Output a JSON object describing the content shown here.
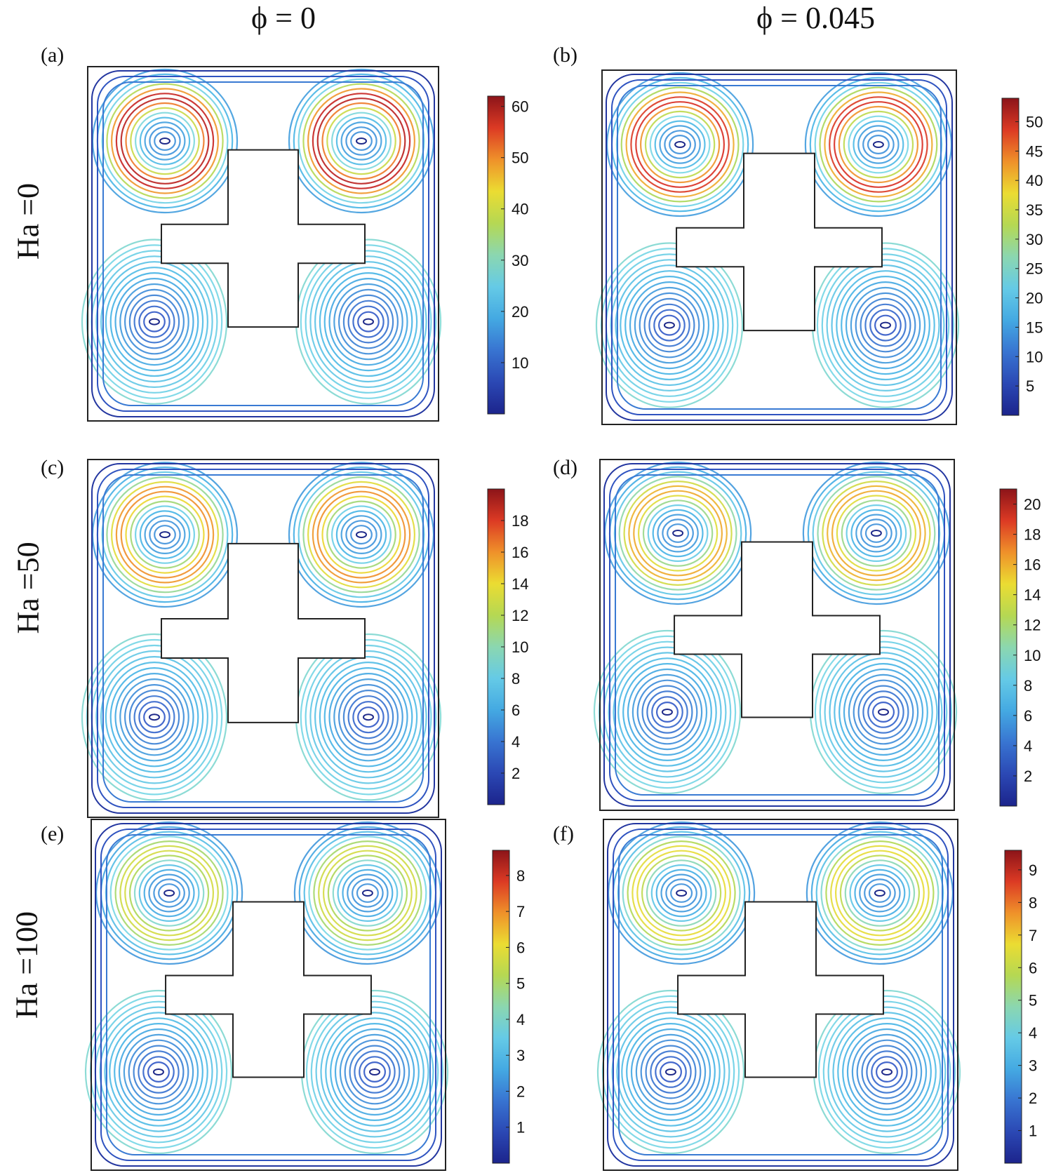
{
  "columns": [
    "ϕ = 0",
    "ϕ = 0.045"
  ],
  "rows": [
    "Ha =0",
    "Ha =50",
    "Ha =100"
  ],
  "panels": [
    {
      "label": "(a)",
      "ticks": [
        "10",
        "20",
        "30",
        "40",
        "50",
        "60"
      ],
      "max": 62
    },
    {
      "label": "(b)",
      "ticks": [
        "5",
        "10",
        "15",
        "20",
        "25",
        "30",
        "35",
        "40",
        "45",
        "50"
      ],
      "max": 54
    },
    {
      "label": "(c)",
      "ticks": [
        "2",
        "4",
        "6",
        "8",
        "10",
        "12",
        "14",
        "16",
        "18"
      ],
      "max": 20
    },
    {
      "label": "(d)",
      "ticks": [
        "2",
        "4",
        "6",
        "8",
        "10",
        "12",
        "14",
        "16",
        "18",
        "20"
      ],
      "max": 21
    },
    {
      "label": "(e)",
      "ticks": [
        "1",
        "2",
        "3",
        "4",
        "5",
        "6",
        "7",
        "8"
      ],
      "max": 8.7
    },
    {
      "label": "(f)",
      "ticks": [
        "1",
        "2",
        "3",
        "4",
        "5",
        "6",
        "7",
        "8",
        "9"
      ],
      "max": 9.6
    }
  ],
  "colors": {
    "low": "#1f2a8a",
    "mid": "#5fc3e0",
    "high": "#e03020",
    "frame": "#222222"
  }
}
